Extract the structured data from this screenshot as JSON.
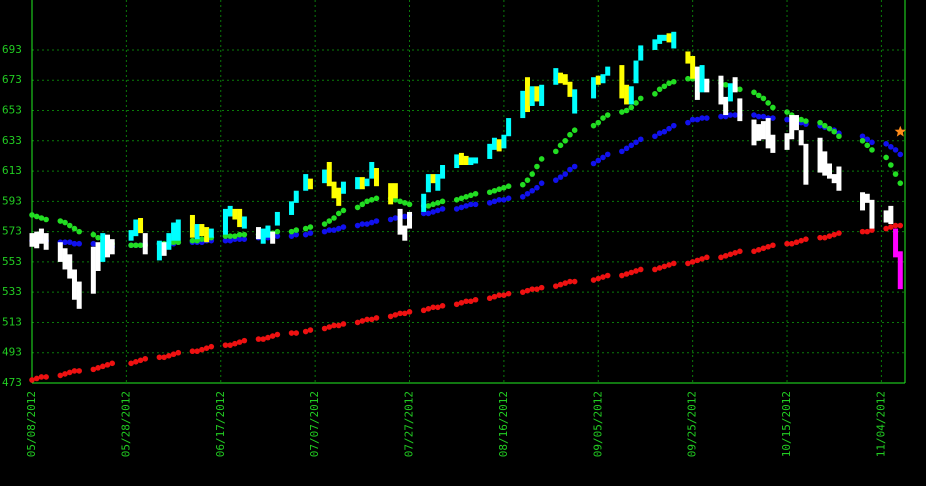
{
  "chart_data": {
    "type": "stock",
    "ylim": [
      473,
      726
    ],
    "yticks": [
      473,
      493,
      513,
      533,
      553,
      573,
      593,
      613,
      633,
      653,
      673,
      693
    ],
    "xlim": [
      "05/08/2012",
      "11/09/2012"
    ],
    "xticks": [
      "05/08/2012",
      "05/28/2012",
      "06/17/2012",
      "07/07/2012",
      "07/27/2012",
      "08/16/2012",
      "09/05/2012",
      "09/25/2012",
      "10/15/2012",
      "11/04/2012"
    ],
    "grid": true,
    "x": [
      "05/08/2012",
      "05/09/2012",
      "05/10/2012",
      "05/11/2012",
      "05/14/2012",
      "05/15/2012",
      "05/16/2012",
      "05/17/2012",
      "05/18/2012",
      "05/21/2012",
      "05/22/2012",
      "05/23/2012",
      "05/24/2012",
      "05/25/2012",
      "05/29/2012",
      "05/30/2012",
      "05/31/2012",
      "06/01/2012",
      "06/04/2012",
      "06/05/2012",
      "06/06/2012",
      "06/07/2012",
      "06/08/2012",
      "06/11/2012",
      "06/12/2012",
      "06/13/2012",
      "06/14/2012",
      "06/15/2012",
      "06/18/2012",
      "06/19/2012",
      "06/20/2012",
      "06/21/2012",
      "06/22/2012",
      "06/25/2012",
      "06/26/2012",
      "06/27/2012",
      "06/28/2012",
      "06/29/2012",
      "07/02/2012",
      "07/03/2012",
      "07/05/2012",
      "07/06/2012",
      "07/09/2012",
      "07/10/2012",
      "07/11/2012",
      "07/12/2012",
      "07/13/2012",
      "07/16/2012",
      "07/17/2012",
      "07/18/2012",
      "07/19/2012",
      "07/20/2012",
      "07/23/2012",
      "07/24/2012",
      "07/25/2012",
      "07/26/2012",
      "07/27/2012",
      "07/30/2012",
      "07/31/2012",
      "08/01/2012",
      "08/02/2012",
      "08/03/2012",
      "08/06/2012",
      "08/07/2012",
      "08/08/2012",
      "08/09/2012",
      "08/10/2012",
      "08/13/2012",
      "08/14/2012",
      "08/15/2012",
      "08/16/2012",
      "08/17/2012",
      "08/20/2012",
      "08/21/2012",
      "08/22/2012",
      "08/23/2012",
      "08/24/2012",
      "08/27/2012",
      "08/28/2012",
      "08/29/2012",
      "08/30/2012",
      "08/31/2012",
      "09/04/2012",
      "09/05/2012",
      "09/06/2012",
      "09/07/2012",
      "09/10/2012",
      "09/11/2012",
      "09/12/2012",
      "09/13/2012",
      "09/14/2012",
      "09/17/2012",
      "09/18/2012",
      "09/19/2012",
      "09/20/2012",
      "09/21/2012",
      "09/24/2012",
      "09/25/2012",
      "09/26/2012",
      "09/27/2012",
      "09/28/2012",
      "10/01/2012",
      "10/02/2012",
      "10/03/2012",
      "10/04/2012",
      "10/05/2012",
      "10/08/2012",
      "10/09/2012",
      "10/10/2012",
      "10/11/2012",
      "10/12/2012",
      "10/15/2012",
      "10/16/2012",
      "10/17/2012",
      "10/18/2012",
      "10/19/2012",
      "10/22/2012",
      "10/23/2012",
      "10/24/2012",
      "10/25/2012",
      "10/26/2012",
      "10/31/2012",
      "11/01/2012",
      "11/02/2012",
      "11/05/2012",
      "11/06/2012",
      "11/07/2012",
      "11/08/2012"
    ],
    "low": [
      563,
      562,
      565,
      561,
      553,
      548,
      542,
      528,
      522,
      532,
      547,
      553,
      556,
      558,
      567,
      570,
      572,
      558,
      554,
      557,
      561,
      567,
      567,
      569,
      568,
      570,
      566,
      569,
      571,
      583,
      581,
      576,
      575,
      568,
      565,
      569,
      565,
      577,
      584,
      592,
      600,
      601,
      605,
      603,
      595,
      590,
      598,
      601,
      601,
      603,
      608,
      603,
      591,
      595,
      571,
      567,
      575,
      586,
      599,
      605,
      600,
      608,
      615,
      617,
      617,
      617,
      618,
      621,
      627,
      626,
      628,
      636,
      648,
      652,
      656,
      659,
      656,
      670,
      671,
      670,
      662,
      651,
      661,
      670,
      671,
      676,
      661,
      657,
      657,
      671,
      686,
      693,
      697,
      699,
      698,
      694,
      684,
      674,
      660,
      665,
      665,
      657,
      650,
      659,
      665,
      646,
      630,
      633,
      634,
      628,
      625,
      627,
      634,
      640,
      630,
      604,
      612,
      610,
      608,
      605,
      600,
      587,
      592,
      575,
      579,
      578,
      556,
      535
    ],
    "high": [
      572,
      573,
      575,
      572,
      566,
      562,
      558,
      548,
      540,
      563,
      566,
      572,
      571,
      568,
      574,
      581,
      582,
      572,
      567,
      566,
      572,
      579,
      581,
      584,
      578,
      578,
      576,
      575,
      588,
      590,
      588,
      588,
      583,
      576,
      575,
      577,
      573,
      586,
      593,
      600,
      611,
      608,
      614,
      619,
      606,
      602,
      606,
      609,
      609,
      608,
      619,
      615,
      605,
      605,
      588,
      577,
      586,
      598,
      611,
      611,
      611,
      617,
      624,
      625,
      623,
      622,
      622,
      631,
      635,
      634,
      637,
      648,
      666,
      675,
      669,
      669,
      670,
      681,
      678,
      677,
      672,
      667,
      675,
      676,
      677,
      682,
      683,
      670,
      669,
      686,
      696,
      700,
      703,
      703,
      704,
      705,
      692,
      689,
      682,
      683,
      674,
      676,
      662,
      671,
      675,
      661,
      647,
      644,
      646,
      648,
      637,
      638,
      650,
      650,
      640,
      631,
      635,
      626,
      618,
      611,
      616,
      599,
      598,
      594,
      587,
      590,
      575,
      560
    ],
    "colors": [
      "white",
      "white",
      "white",
      "white",
      "white",
      "white",
      "white",
      "white",
      "white",
      "white",
      "white",
      "cyan",
      "white",
      "white",
      "cyan",
      "cyan",
      "yellow",
      "white",
      "cyan",
      "white",
      "cyan",
      "cyan",
      "cyan",
      "yellow",
      "cyan",
      "yellow",
      "yellow",
      "cyan",
      "cyan",
      "cyan",
      "yellow",
      "yellow",
      "cyan",
      "white",
      "cyan",
      "cyan",
      "white",
      "cyan",
      "cyan",
      "cyan",
      "cyan",
      "yellow",
      "cyan",
      "yellow",
      "yellow",
      "yellow",
      "cyan",
      "cyan",
      "yellow",
      "cyan",
      "cyan",
      "yellow",
      "yellow",
      "yellow",
      "white",
      "white",
      "white",
      "cyan",
      "cyan",
      "yellow",
      "cyan",
      "cyan",
      "cyan",
      "yellow",
      "yellow",
      "cyan",
      "cyan",
      "cyan",
      "cyan",
      "yellow",
      "cyan",
      "cyan",
      "cyan",
      "yellow",
      "cyan",
      "yellow",
      "cyan",
      "cyan",
      "yellow",
      "yellow",
      "yellow",
      "cyan",
      "cyan",
      "yellow",
      "cyan",
      "cyan",
      "yellow",
      "yellow",
      "cyan",
      "cyan",
      "cyan",
      "cyan",
      "cyan",
      "cyan",
      "yellow",
      "cyan",
      "yellow",
      "yellow",
      "white",
      "cyan",
      "white",
      "white",
      "white",
      "cyan",
      "white",
      "white",
      "white",
      "white",
      "white",
      "white",
      "white",
      "white",
      "white",
      "white",
      "white",
      "white",
      "white",
      "white",
      "white",
      "white",
      "white",
      "white",
      "white",
      "white",
      "white",
      "white",
      "magenta",
      "magenta"
    ],
    "series": [
      {
        "color": "#ee1111",
        "values": [
          475,
          476,
          477,
          477,
          478,
          479,
          480,
          481,
          481,
          482,
          483,
          484,
          485,
          486,
          486,
          487,
          488,
          489,
          490,
          490,
          491,
          492,
          493,
          494,
          494,
          495,
          496,
          497,
          498,
          498,
          499,
          500,
          501,
          502,
          502,
          503,
          504,
          505,
          506,
          506,
          507,
          508,
          509,
          510,
          511,
          511,
          512,
          513,
          514,
          515,
          515,
          516,
          517,
          518,
          519,
          519,
          520,
          521,
          522,
          523,
          523,
          524,
          525,
          526,
          527,
          527,
          528,
          529,
          530,
          531,
          531,
          532,
          533,
          534,
          535,
          535,
          536,
          537,
          538,
          539,
          540,
          540,
          541,
          542,
          543,
          544,
          544,
          545,
          546,
          547,
          548,
          548,
          549,
          550,
          551,
          552,
          552,
          553,
          554,
          555,
          556,
          556,
          557,
          558,
          559,
          560,
          560,
          561,
          562,
          563,
          564,
          565,
          565,
          566,
          567,
          568,
          569,
          569,
          570,
          571,
          572,
          573,
          573,
          574,
          575,
          576,
          577,
          577
        ]
      },
      {
        "color": "#1111ee",
        "values": [
          567,
          567,
          567,
          567,
          566,
          566,
          566,
          565,
          565,
          565,
          564,
          564,
          564,
          563,
          564,
          564,
          564,
          565,
          565,
          565,
          565,
          565,
          566,
          566,
          566,
          566,
          567,
          567,
          567,
          567,
          568,
          568,
          568,
          569,
          569,
          569,
          570,
          570,
          570,
          571,
          571,
          572,
          573,
          574,
          574,
          575,
          576,
          577,
          578,
          578,
          579,
          580,
          581,
          582,
          582,
          583,
          584,
          585,
          585,
          586,
          587,
          588,
          588,
          589,
          590,
          591,
          591,
          592,
          593,
          594,
          594,
          595,
          596,
          598,
          600,
          602,
          605,
          607,
          609,
          611,
          614,
          616,
          618,
          620,
          622,
          624,
          626,
          628,
          630,
          632,
          634,
          636,
          638,
          639,
          641,
          643,
          645,
          647,
          647,
          648,
          648,
          649,
          649,
          650,
          650,
          650,
          650,
          649,
          649,
          648,
          648,
          647,
          646,
          646,
          645,
          644,
          643,
          642,
          641,
          640,
          638,
          636,
          634,
          632,
          631,
          629,
          627,
          624
        ]
      },
      {
        "color": "#22dd22",
        "values": [
          584,
          583,
          582,
          581,
          580,
          579,
          577,
          575,
          573,
          571,
          569,
          567,
          566,
          565,
          564,
          564,
          564,
          564,
          565,
          565,
          565,
          566,
          566,
          567,
          567,
          568,
          568,
          569,
          570,
          570,
          570,
          571,
          571,
          571,
          572,
          572,
          572,
          573,
          573,
          574,
          575,
          576,
          578,
          580,
          582,
          585,
          587,
          589,
          591,
          593,
          594,
          595,
          595,
          594,
          593,
          592,
          591,
          590,
          590,
          591,
          592,
          593,
          594,
          595,
          596,
          597,
          598,
          599,
          600,
          601,
          602,
          603,
          604,
          607,
          611,
          616,
          621,
          626,
          630,
          633,
          637,
          640,
          643,
          645,
          648,
          650,
          652,
          653,
          655,
          658,
          661,
          664,
          667,
          669,
          671,
          672,
          674,
          674,
          674,
          673,
          672,
          671,
          670,
          669,
          668,
          667,
          665,
          663,
          661,
          658,
          655,
          652,
          650,
          648,
          647,
          646,
          645,
          643,
          641,
          639,
          636,
          633,
          630,
          627,
          622,
          617,
          611,
          605
        ]
      }
    ],
    "star": {
      "x": "11/08/2012",
      "value": 639,
      "color": "#ff8c1a"
    }
  }
}
